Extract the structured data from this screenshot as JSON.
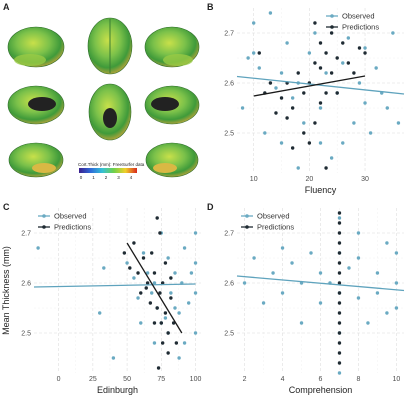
{
  "colors": {
    "observed": "#6aaac2",
    "predictions": "#1f2b33",
    "fit_observed": "#5fa3bd",
    "fit_predictions": "#1a1a1a"
  },
  "panels": {
    "a": {
      "letter": "A",
      "colorbar_title": "Cort.Thick (mm): FreeSurfer data",
      "colorbar_ticks": [
        "0",
        "1",
        "2",
        "3",
        "4"
      ]
    },
    "b": {
      "letter": "B"
    },
    "c": {
      "letter": "C"
    },
    "d": {
      "letter": "D"
    }
  },
  "chart_data": [
    {
      "panel": "B",
      "type": "scatter",
      "xlabel": "Fluency",
      "ylabel": "",
      "xlim": [
        7,
        37
      ],
      "ylim": [
        2.42,
        2.75
      ],
      "xticks": [
        10,
        20,
        30
      ],
      "yticks": [
        2.5,
        2.6,
        2.7
      ],
      "legend": "top-right",
      "series": [
        {
          "name": "Observed",
          "points": [
            [
              8,
              2.55
            ],
            [
              9,
              2.65
            ],
            [
              10,
              2.66
            ],
            [
              10,
              2.72
            ],
            [
              11,
              2.63
            ],
            [
              12,
              2.5
            ],
            [
              13,
              2.74
            ],
            [
              14,
              2.59
            ],
            [
              15,
              2.62
            ],
            [
              15,
              2.48
            ],
            [
              16,
              2.68
            ],
            [
              17,
              2.57
            ],
            [
              18,
              2.6
            ],
            [
              19,
              2.52
            ],
            [
              20,
              2.66
            ],
            [
              21,
              2.7
            ],
            [
              22,
              2.55
            ],
            [
              23,
              2.62
            ],
            [
              24,
              2.45
            ],
            [
              25,
              2.58
            ],
            [
              26,
              2.64
            ],
            [
              27,
              2.69
            ],
            [
              28,
              2.52
            ],
            [
              29,
              2.6
            ],
            [
              30,
              2.67
            ],
            [
              31,
              2.5
            ],
            [
              32,
              2.63
            ],
            [
              33,
              2.58
            ],
            [
              34,
              2.55
            ],
            [
              35,
              2.7
            ],
            [
              36,
              2.52
            ],
            [
              18,
              2.43
            ],
            [
              22,
              2.48
            ],
            [
              26,
              2.48
            ],
            [
              30,
              2.56
            ]
          ],
          "fit": [
            [
              7,
              2.613
            ],
            [
              37,
              2.578
            ]
          ]
        },
        {
          "name": "Predictions",
          "points": [
            [
              11,
              2.66
            ],
            [
              12,
              2.58
            ],
            [
              13,
              2.6
            ],
            [
              14,
              2.54
            ],
            [
              15,
              2.57
            ],
            [
              16,
              2.53
            ],
            [
              17,
              2.55
            ],
            [
              18,
              2.62
            ],
            [
              19,
              2.58
            ],
            [
              20,
              2.6
            ],
            [
              21,
              2.64
            ],
            [
              22,
              2.68
            ],
            [
              23,
              2.66
            ],
            [
              24,
              2.7
            ],
            [
              25,
              2.65
            ],
            [
              26,
              2.68
            ],
            [
              27,
              2.64
            ],
            [
              28,
              2.62
            ],
            [
              29,
              2.67
            ],
            [
              30,
              2.66
            ],
            [
              19,
              2.5
            ],
            [
              20,
              2.48
            ],
            [
              21,
              2.52
            ],
            [
              22,
              2.56
            ],
            [
              23,
              2.58
            ],
            [
              24,
              2.62
            ],
            [
              25,
              2.58
            ],
            [
              21,
              2.72
            ],
            [
              22,
              2.63
            ],
            [
              16,
              2.6
            ],
            [
              17,
              2.47
            ],
            [
              23,
              2.43
            ]
          ],
          "fit": [
            [
              10,
              2.574
            ],
            [
              30,
              2.614
            ]
          ]
        }
      ]
    },
    {
      "panel": "C",
      "type": "scatter",
      "xlabel": "Edinburgh",
      "ylabel": "Mean Thickness (mm)",
      "xlim": [
        -18,
        104
      ],
      "ylim": [
        2.42,
        2.75
      ],
      "xticks": [
        0,
        25,
        50,
        75,
        100
      ],
      "yticks": [
        2.5,
        2.6,
        2.7
      ],
      "legend": "top-left",
      "series": [
        {
          "name": "Observed",
          "points": [
            [
              -15,
              2.67
            ],
            [
              30,
              2.54
            ],
            [
              33,
              2.63
            ],
            [
              40,
              2.45
            ],
            [
              50,
              2.64
            ],
            [
              55,
              2.61
            ],
            [
              58,
              2.57
            ],
            [
              60,
              2.52
            ],
            [
              62,
              2.66
            ],
            [
              65,
              2.62
            ],
            [
              68,
              2.58
            ],
            [
              70,
              2.6
            ],
            [
              72,
              2.55
            ],
            [
              75,
              2.7
            ],
            [
              78,
              2.53
            ],
            [
              80,
              2.65
            ],
            [
              82,
              2.58
            ],
            [
              85,
              2.62
            ],
            [
              88,
              2.54
            ],
            [
              90,
              2.6
            ],
            [
              92,
              2.67
            ],
            [
              95,
              2.56
            ],
            [
              97,
              2.62
            ],
            [
              100,
              2.5
            ],
            [
              100,
              2.58
            ],
            [
              100,
              2.64
            ],
            [
              100,
              2.7
            ],
            [
              88,
              2.45
            ],
            [
              92,
              2.48
            ],
            [
              70,
              2.48
            ],
            [
              75,
              2.52
            ],
            [
              80,
              2.5
            ],
            [
              85,
              2.55
            ]
          ],
          "fit": [
            [
              -18,
              2.592
            ],
            [
              100,
              2.598
            ]
          ]
        },
        {
          "name": "Predictions",
          "points": [
            [
              48,
              2.66
            ],
            [
              52,
              2.63
            ],
            [
              55,
              2.68
            ],
            [
              58,
              2.62
            ],
            [
              60,
              2.58
            ],
            [
              62,
              2.65
            ],
            [
              65,
              2.6
            ],
            [
              67,
              2.56
            ],
            [
              70,
              2.62
            ],
            [
              72,
              2.55
            ],
            [
              74,
              2.58
            ],
            [
              75,
              2.52
            ],
            [
              76,
              2.6
            ],
            [
              78,
              2.54
            ],
            [
              80,
              2.5
            ],
            [
              82,
              2.57
            ],
            [
              84,
              2.52
            ],
            [
              86,
              2.48
            ],
            [
              72,
              2.73
            ],
            [
              74,
              2.7
            ],
            [
              68,
              2.66
            ],
            [
              78,
              2.64
            ],
            [
              70,
              2.52
            ],
            [
              64,
              2.59
            ],
            [
              80,
              2.46
            ],
            [
              76,
              2.48
            ],
            [
              73,
              2.43
            ],
            [
              82,
              2.61
            ]
          ],
          "fit": [
            [
              50,
              2.68
            ],
            [
              90,
              2.5
            ]
          ]
        }
      ]
    },
    {
      "panel": "D",
      "type": "scatter",
      "xlabel": "Comprehension",
      "ylabel": "",
      "xlim": [
        1.6,
        10.4
      ],
      "ylim": [
        2.42,
        2.75
      ],
      "xticks": [
        2,
        4,
        6,
        8,
        10
      ],
      "yticks": [
        2.5,
        2.6,
        2.7
      ],
      "legend": "top-left",
      "series": [
        {
          "name": "Observed",
          "points": [
            [
              2,
              2.6
            ],
            [
              2.5,
              2.65
            ],
            [
              3,
              2.56
            ],
            [
              3.5,
              2.62
            ],
            [
              4,
              2.58
            ],
            [
              4.5,
              2.64
            ],
            [
              5,
              2.52
            ],
            [
              5,
              2.6
            ],
            [
              5.5,
              2.66
            ],
            [
              6,
              2.56
            ],
            [
              6,
              2.62
            ],
            [
              6.5,
              2.6
            ],
            [
              7,
              2.42
            ],
            [
              7,
              2.5
            ],
            [
              7,
              2.58
            ],
            [
              7,
              2.66
            ],
            [
              7,
              2.73
            ],
            [
              7.5,
              2.63
            ],
            [
              8,
              2.57
            ],
            [
              8,
              2.65
            ],
            [
              8.5,
              2.52
            ],
            [
              9,
              2.58
            ],
            [
              9,
              2.62
            ],
            [
              9.5,
              2.68
            ],
            [
              10,
              2.55
            ],
            [
              10,
              2.6
            ],
            [
              10,
              2.66
            ],
            [
              8,
              2.7
            ],
            [
              4,
              2.67
            ],
            [
              9.5,
              2.54
            ]
          ],
          "fit": [
            [
              1.6,
              2.614
            ],
            [
              10.4,
              2.585
            ]
          ]
        },
        {
          "name": "Predictions",
          "points": [
            [
              7,
              2.44
            ],
            [
              7,
              2.46
            ],
            [
              7,
              2.48
            ],
            [
              7,
              2.5
            ],
            [
              7,
              2.52
            ],
            [
              7,
              2.54
            ],
            [
              7,
              2.56
            ],
            [
              7,
              2.58
            ],
            [
              7,
              2.6
            ],
            [
              7,
              2.62
            ],
            [
              7,
              2.64
            ],
            [
              7,
              2.66
            ],
            [
              7,
              2.68
            ],
            [
              7,
              2.7
            ],
            [
              7,
              2.72
            ],
            [
              7,
              2.74
            ]
          ],
          "fit": []
        }
      ]
    }
  ]
}
